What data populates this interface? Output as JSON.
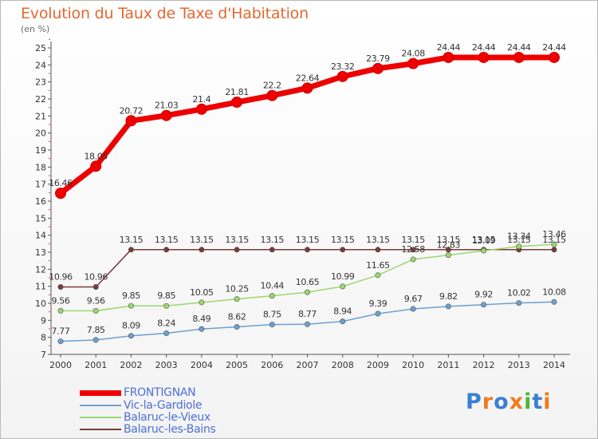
{
  "header": {
    "title": "Evolution du Taux de Taxe d'Habitation",
    "unit": "(en %)"
  },
  "chart_data": {
    "type": "line",
    "title": "Evolution du Taux de Taxe d'Habitation",
    "ylabel": "(en %)",
    "xlabel": "",
    "x": [
      2000,
      2001,
      2002,
      2003,
      2004,
      2005,
      2006,
      2007,
      2008,
      2009,
      2010,
      2011,
      2012,
      2013,
      2014
    ],
    "ylim": [
      7,
      25
    ],
    "yticks": [
      7,
      8,
      9,
      10,
      11,
      12,
      13,
      14,
      15,
      16,
      17,
      18,
      19,
      20,
      21,
      22,
      23,
      24,
      25
    ],
    "grid": false,
    "legend": "bottom-left",
    "series": [
      {
        "name": "FRONTIGNAN",
        "color": "#ee0000",
        "values": [
          16.46,
          18.05,
          20.72,
          21.03,
          21.4,
          21.81,
          22.2,
          22.64,
          23.32,
          23.79,
          24.08,
          24.44,
          24.44,
          24.44,
          24.44
        ],
        "labels": [
          "16.46",
          "18.05",
          "20.72",
          "21.03",
          "21.4",
          "21.81",
          "22.2",
          "22.64",
          "23.32",
          "23.79",
          "24.08",
          "24.44",
          "24.44",
          "24.44",
          "24.44"
        ]
      },
      {
        "name": "Vic-la-Gardiole",
        "color": "#6ca0cf",
        "values": [
          7.77,
          7.85,
          8.09,
          8.24,
          8.49,
          8.62,
          8.75,
          8.77,
          8.94,
          9.39,
          9.67,
          9.82,
          9.92,
          10.02,
          10.08
        ],
        "labels": [
          "7.77",
          "7.85",
          "8.09",
          "8.24",
          "8.49",
          "8.62",
          "8.75",
          "8.77",
          "8.94",
          "9.39",
          "9.67",
          "9.82",
          "9.92",
          "10.02",
          "10.08"
        ]
      },
      {
        "name": "Balaruc-le-Vieux",
        "color": "#9ad86c",
        "values": [
          9.56,
          9.56,
          9.85,
          9.85,
          10.05,
          10.25,
          10.44,
          10.65,
          10.99,
          11.65,
          12.58,
          12.83,
          13.09,
          13.34,
          13.46
        ],
        "labels": [
          "9.56",
          "9.56",
          "9.85",
          "9.85",
          "10.05",
          "10.25",
          "10.44",
          "10.65",
          "10.99",
          "11.65",
          "12.58",
          "12.83",
          "13.09",
          "13.34",
          "13.46"
        ]
      },
      {
        "name": "Balaruc-les-Bains",
        "color": "#7a3a3a",
        "values": [
          10.96,
          10.96,
          13.15,
          13.15,
          13.15,
          13.15,
          13.15,
          13.15,
          13.15,
          13.15,
          13.15,
          13.15,
          13.15,
          13.15,
          13.15
        ],
        "labels": [
          "10.96",
          "10.96",
          "13.15",
          "13.15",
          "13.15",
          "13.15",
          "13.15",
          "13.15",
          "13.15",
          "13.15",
          "13.15",
          "13.15",
          "13.15",
          "13.15",
          "13.15"
        ]
      }
    ]
  },
  "branding": {
    "logo_letters": [
      "P",
      "r",
      "o",
      "x",
      "i",
      "t",
      "i"
    ],
    "logo_colors": [
      "#3b7fd4",
      "#f07b1e",
      "#3b7fd4",
      "#f07b1e",
      "#4fb53a",
      "#3b7fd4",
      "#f07b1e"
    ]
  }
}
